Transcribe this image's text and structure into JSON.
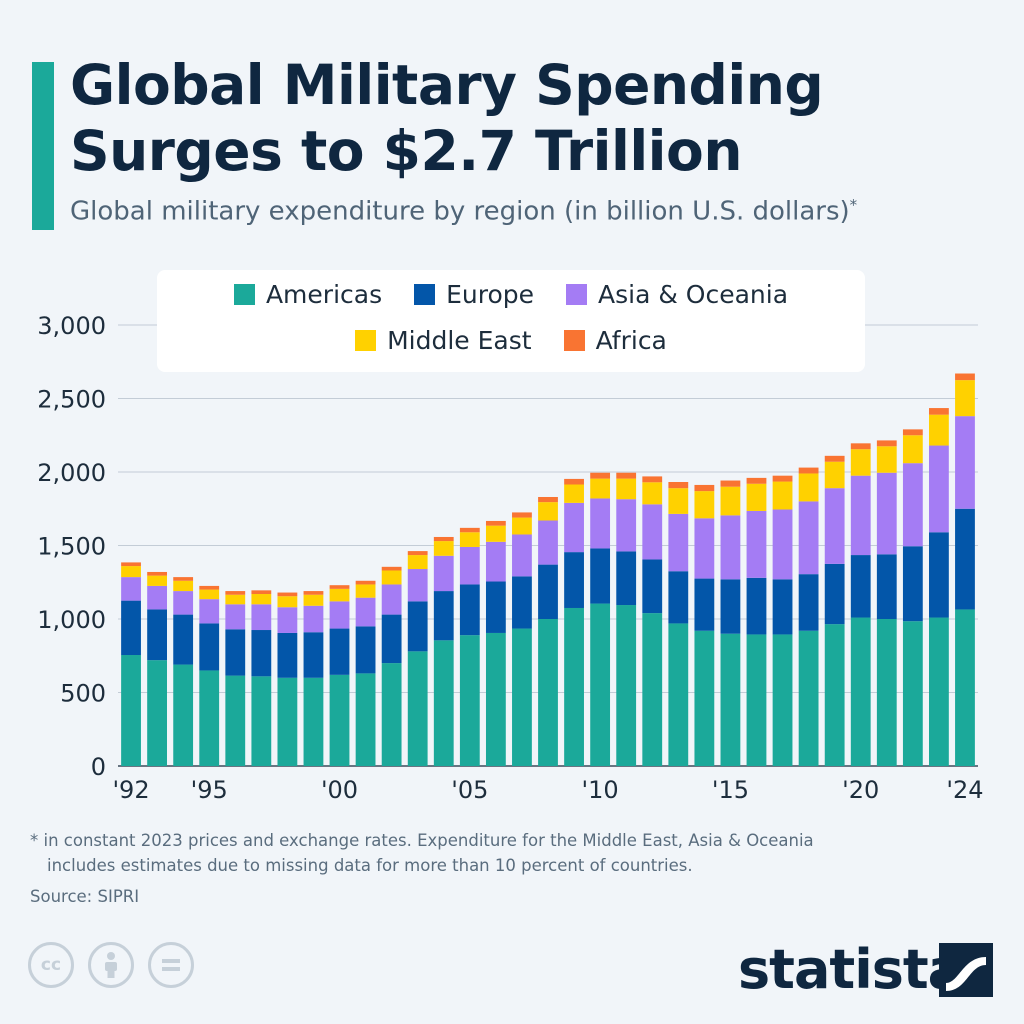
{
  "title": "Global Military Spending Surges to $2.7 Trillion",
  "subtitle": "Global military expenditure by region (in billion U.S. dollars)",
  "subtitle_marker": "*",
  "footnote": {
    "line1": "* in constant 2023 prices and exchange rates. Expenditure for the Middle East, Asia & Oceania",
    "line2": "includes estimates due to missing data for more than 10 percent of countries."
  },
  "source": "Source: SIPRI",
  "brand": "statista",
  "license_icons": [
    "cc-icon",
    "attribution-icon",
    "no-derivatives-icon"
  ],
  "colors": {
    "accent": "#1ba99a",
    "title": "#0f2740"
  },
  "chart_data": {
    "type": "bar",
    "stacked": true,
    "ylim": [
      0,
      3000
    ],
    "yticks": [
      0,
      500,
      1000,
      1500,
      2000,
      2500,
      3000
    ],
    "ytick_labels": [
      "0",
      "500",
      "1,000",
      "1,500",
      "2,000",
      "2,500",
      "3,000"
    ],
    "categories": [
      1992,
      1993,
      1994,
      1995,
      1996,
      1997,
      1998,
      1999,
      2000,
      2001,
      2002,
      2003,
      2004,
      2005,
      2006,
      2007,
      2008,
      2009,
      2010,
      2011,
      2012,
      2013,
      2014,
      2015,
      2016,
      2017,
      2018,
      2019,
      2020,
      2021,
      2022,
      2023,
      2024
    ],
    "xtick_labels": [
      {
        "year": 1992,
        "label": "'92"
      },
      {
        "year": 1995,
        "label": "'95"
      },
      {
        "year": 2000,
        "label": "'00"
      },
      {
        "year": 2005,
        "label": "'05"
      },
      {
        "year": 2010,
        "label": "'10"
      },
      {
        "year": 2015,
        "label": "'15"
      },
      {
        "year": 2020,
        "label": "'20"
      },
      {
        "year": 2024,
        "label": "'24"
      }
    ],
    "legend_placement": "top",
    "grid": true,
    "series": [
      {
        "name": "Americas",
        "color": "#1ba99a",
        "values": [
          755,
          720,
          690,
          650,
          615,
          610,
          600,
          600,
          620,
          630,
          700,
          780,
          855,
          890,
          905,
          935,
          1000,
          1075,
          1105,
          1095,
          1040,
          970,
          920,
          900,
          895,
          895,
          920,
          965,
          1010,
          1000,
          985,
          1010,
          1065
        ]
      },
      {
        "name": "Europe",
        "color": "#0356a9",
        "values": [
          370,
          345,
          340,
          320,
          315,
          315,
          305,
          310,
          315,
          320,
          330,
          340,
          335,
          345,
          350,
          355,
          370,
          380,
          375,
          365,
          365,
          355,
          355,
          370,
          385,
          375,
          385,
          410,
          425,
          440,
          510,
          580,
          685
        ]
      },
      {
        "name": "Asia & Oceania",
        "color": "#a47cf4",
        "values": [
          160,
          160,
          160,
          165,
          170,
          175,
          175,
          180,
          185,
          195,
          205,
          220,
          240,
          255,
          270,
          285,
          300,
          335,
          340,
          355,
          375,
          390,
          410,
          435,
          455,
          475,
          495,
          515,
          540,
          555,
          565,
          590,
          630
        ]
      },
      {
        "name": "Middle East",
        "color": "#ffd100",
        "values": [
          75,
          70,
          70,
          65,
          65,
          70,
          75,
          75,
          85,
          90,
          95,
          95,
          100,
          100,
          110,
          115,
          125,
          125,
          135,
          140,
          150,
          175,
          185,
          195,
          185,
          190,
          190,
          180,
          180,
          180,
          190,
          210,
          245
        ]
      },
      {
        "name": "Africa",
        "color": "#f97432",
        "values": [
          25,
          25,
          25,
          25,
          25,
          25,
          25,
          25,
          25,
          25,
          25,
          27,
          28,
          30,
          32,
          35,
          35,
          38,
          40,
          40,
          40,
          42,
          42,
          42,
          40,
          40,
          40,
          40,
          40,
          40,
          40,
          45,
          45
        ]
      }
    ]
  }
}
